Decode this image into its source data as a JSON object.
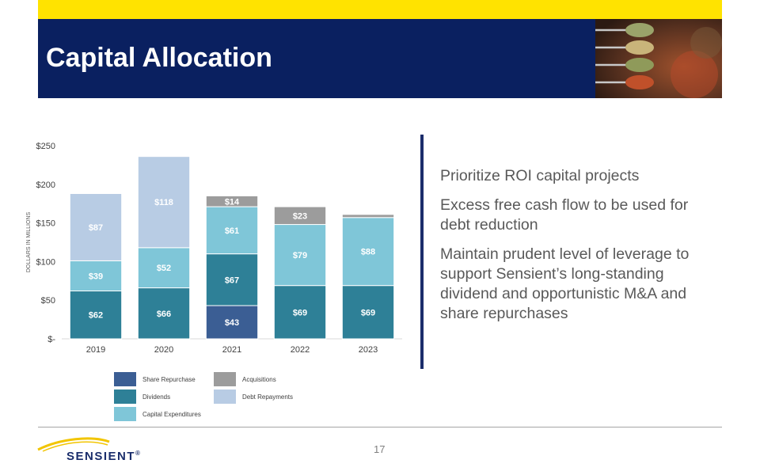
{
  "header": {
    "title": "Capital Allocation"
  },
  "chart_data": {
    "type": "bar",
    "stacked": true,
    "categories": [
      "2019",
      "2020",
      "2021",
      "2022",
      "2023"
    ],
    "ylabel": "DOLLARS IN MILLIONS",
    "ylim": [
      0,
      250
    ],
    "yticks": [
      0,
      50,
      100,
      150,
      200,
      250
    ],
    "ytick_labels": [
      "$-",
      "$50",
      "$100",
      "$150",
      "$200",
      "$250"
    ],
    "series": [
      {
        "name": "Share Repurchase",
        "color": "#3b5e94",
        "values": [
          0,
          0,
          43,
          0,
          0
        ],
        "labels": [
          "",
          "",
          "$43",
          "",
          ""
        ]
      },
      {
        "name": "Dividends",
        "color": "#2e8097",
        "values": [
          62,
          66,
          67,
          69,
          69
        ],
        "labels": [
          "$62",
          "$66",
          "$67",
          "$69",
          "$69"
        ]
      },
      {
        "name": "Capital Expenditures",
        "color": "#7fc6d8",
        "values": [
          39,
          52,
          61,
          79,
          88
        ],
        "labels": [
          "$39",
          "$52",
          "$61",
          "$79",
          "$88"
        ]
      },
      {
        "name": "Acquisitions",
        "color": "#9c9c9c",
        "values": [
          0,
          0,
          14,
          23,
          4
        ],
        "labels": [
          "",
          "",
          "$14",
          "$23",
          ""
        ]
      },
      {
        "name": "Debt Repayments",
        "color": "#b8cce4",
        "values": [
          87,
          118,
          0,
          0,
          0
        ],
        "labels": [
          "$87",
          "$118",
          "",
          "",
          ""
        ]
      }
    ],
    "legend_order": [
      "Share Repurchase",
      "Acquisitions",
      "Dividends",
      "Debt Repayments",
      "Capital Expenditures"
    ],
    "legend_position": "bottom",
    "grid": false
  },
  "bullets": [
    "Prioritize ROI capital projects",
    "Excess free cash flow to be used for debt reduction",
    "Maintain prudent level of leverage to support Sensient’s long-standing dividend and opportunistic M&A and share repurchases"
  ],
  "footer": {
    "page_number": "17",
    "logo_text": "SENSIENT",
    "logo_mark": "®"
  }
}
